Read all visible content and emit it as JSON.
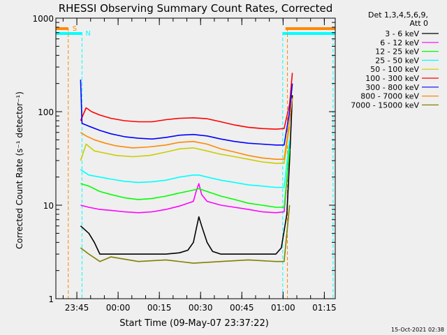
{
  "chart_data": {
    "type": "line",
    "title": "RHESSI Observing Summary Count Rates, Corrected",
    "ylabel": "Corrected Count Rate (s⁻¹ detector⁻¹)",
    "xlabel": "Start Time (09-May-07 23:37:22)",
    "yscale": "log",
    "ylim": [
      1,
      1000
    ],
    "xlim_minutes_from_start": [
      0,
      101.6
    ],
    "y_tick_labels": [
      {
        "value": 1,
        "label": "1"
      },
      {
        "value": 10,
        "label": "10"
      },
      {
        "value": 100,
        "label": "100"
      },
      {
        "value": 1000,
        "label": "1000"
      }
    ],
    "x_tick_labels": [
      {
        "t": 7.63,
        "label": "23:45"
      },
      {
        "t": 22.63,
        "label": "00:00"
      },
      {
        "t": 37.63,
        "label": "00:15"
      },
      {
        "t": 52.63,
        "label": "00:30"
      },
      {
        "t": 67.63,
        "label": "00:45"
      },
      {
        "t": 82.63,
        "label": "01:00"
      },
      {
        "t": 97.63,
        "label": "01:15"
      }
    ],
    "legend_title": [
      "Det 1,3,4,5,6,9,",
      "Att 0"
    ],
    "legend_position": "right",
    "series": [
      {
        "name": "3 - 6 keV",
        "color": "#000000",
        "points": [
          [
            9,
            6
          ],
          [
            12,
            5
          ],
          [
            14,
            4
          ],
          [
            16,
            3
          ],
          [
            20,
            3
          ],
          [
            30,
            3
          ],
          [
            40,
            3
          ],
          [
            45,
            3.1
          ],
          [
            48,
            3.3
          ],
          [
            50,
            4
          ],
          [
            51,
            5.5
          ],
          [
            52,
            7.5
          ],
          [
            53,
            6
          ],
          [
            55,
            4
          ],
          [
            57,
            3.2
          ],
          [
            60,
            3
          ],
          [
            70,
            3
          ],
          [
            80,
            3
          ],
          [
            82,
            3.5
          ],
          [
            84,
            8
          ],
          [
            85,
            30
          ],
          [
            86,
            150
          ]
        ]
      },
      {
        "name": "6 - 12 keV",
        "color": "#ff00ff",
        "points": [
          [
            9,
            10
          ],
          [
            12,
            9.5
          ],
          [
            16,
            9
          ],
          [
            20,
            8.8
          ],
          [
            25,
            8.5
          ],
          [
            30,
            8.3
          ],
          [
            35,
            8.5
          ],
          [
            40,
            9
          ],
          [
            45,
            9.8
          ],
          [
            50,
            11
          ],
          [
            51,
            14
          ],
          [
            52,
            17
          ],
          [
            53,
            13
          ],
          [
            55,
            11
          ],
          [
            60,
            10
          ],
          [
            65,
            9.5
          ],
          [
            70,
            9
          ],
          [
            75,
            8.5
          ],
          [
            80,
            8.3
          ],
          [
            83,
            8.5
          ],
          [
            85,
            40
          ]
        ]
      },
      {
        "name": "12 - 25 keV",
        "color": "#00ff00",
        "points": [
          [
            9,
            17
          ],
          [
            12,
            16
          ],
          [
            16,
            14
          ],
          [
            20,
            13
          ],
          [
            25,
            12
          ],
          [
            30,
            11.5
          ],
          [
            35,
            11.8
          ],
          [
            40,
            12.5
          ],
          [
            45,
            13.5
          ],
          [
            50,
            14.5
          ],
          [
            52,
            15
          ],
          [
            55,
            14
          ],
          [
            60,
            12.5
          ],
          [
            65,
            11.5
          ],
          [
            70,
            10.5
          ],
          [
            75,
            10
          ],
          [
            80,
            9.5
          ],
          [
            83,
            9.5
          ],
          [
            85,
            40
          ]
        ]
      },
      {
        "name": "25 - 50 keV",
        "color": "#00ffff",
        "points": [
          [
            9,
            24
          ],
          [
            12,
            21
          ],
          [
            16,
            20
          ],
          [
            20,
            19
          ],
          [
            25,
            18
          ],
          [
            30,
            17.5
          ],
          [
            35,
            17.8
          ],
          [
            40,
            18.5
          ],
          [
            45,
            20
          ],
          [
            50,
            21
          ],
          [
            52,
            21
          ],
          [
            55,
            20
          ],
          [
            60,
            18.5
          ],
          [
            65,
            17.5
          ],
          [
            70,
            16.5
          ],
          [
            75,
            16
          ],
          [
            80,
            15.5
          ],
          [
            83,
            15.5
          ],
          [
            85,
            50
          ]
        ]
      },
      {
        "name": "50 - 100 keV",
        "color": "#cccc00",
        "points": [
          [
            9,
            30
          ],
          [
            11,
            45
          ],
          [
            14,
            38
          ],
          [
            18,
            36
          ],
          [
            22,
            34
          ],
          [
            28,
            33
          ],
          [
            34,
            34
          ],
          [
            40,
            37
          ],
          [
            45,
            40
          ],
          [
            50,
            41
          ],
          [
            55,
            38
          ],
          [
            60,
            35
          ],
          [
            65,
            33
          ],
          [
            70,
            31
          ],
          [
            75,
            29
          ],
          [
            80,
            28
          ],
          [
            83,
            28
          ],
          [
            85,
            70
          ]
        ]
      },
      {
        "name": "100 - 300 keV",
        "color": "#ff0000",
        "points": [
          [
            9,
            80
          ],
          [
            11,
            110
          ],
          [
            13,
            100
          ],
          [
            16,
            92
          ],
          [
            20,
            85
          ],
          [
            25,
            80
          ],
          [
            30,
            78
          ],
          [
            35,
            78
          ],
          [
            40,
            82
          ],
          [
            45,
            85
          ],
          [
            50,
            86
          ],
          [
            55,
            84
          ],
          [
            60,
            78
          ],
          [
            65,
            72
          ],
          [
            70,
            68
          ],
          [
            75,
            66
          ],
          [
            80,
            65
          ],
          [
            83,
            66
          ],
          [
            85,
            120
          ],
          [
            86,
            260
          ]
        ]
      },
      {
        "name": "300 - 800 keV",
        "color": "#0000ff",
        "points": [
          [
            9,
            220
          ],
          [
            9.5,
            75
          ],
          [
            12,
            70
          ],
          [
            16,
            63
          ],
          [
            20,
            58
          ],
          [
            25,
            54
          ],
          [
            30,
            52
          ],
          [
            35,
            51
          ],
          [
            40,
            53
          ],
          [
            45,
            56
          ],
          [
            50,
            57
          ],
          [
            55,
            55
          ],
          [
            60,
            51
          ],
          [
            65,
            48
          ],
          [
            70,
            46
          ],
          [
            75,
            45
          ],
          [
            80,
            44
          ],
          [
            83,
            44
          ],
          [
            85,
            100
          ],
          [
            86,
            200
          ]
        ]
      },
      {
        "name": "800 - 7000 keV",
        "color": "#ff8800",
        "points": [
          [
            9,
            60
          ],
          [
            11,
            55
          ],
          [
            14,
            50
          ],
          [
            18,
            46
          ],
          [
            22,
            43
          ],
          [
            28,
            41
          ],
          [
            34,
            42
          ],
          [
            40,
            44
          ],
          [
            45,
            47
          ],
          [
            50,
            48
          ],
          [
            55,
            45
          ],
          [
            60,
            40
          ],
          [
            65,
            37
          ],
          [
            70,
            34
          ],
          [
            75,
            32
          ],
          [
            80,
            31
          ],
          [
            83,
            31
          ],
          [
            85,
            80
          ],
          [
            86,
            140
          ]
        ]
      },
      {
        "name": "7000 - 15000 keV",
        "color": "#808000",
        "points": [
          [
            9,
            3.5
          ],
          [
            12,
            3
          ],
          [
            16,
            2.5
          ],
          [
            20,
            2.8
          ],
          [
            30,
            2.5
          ],
          [
            40,
            2.6
          ],
          [
            50,
            2.4
          ],
          [
            60,
            2.5
          ],
          [
            70,
            2.6
          ],
          [
            80,
            2.5
          ],
          [
            83,
            2.5
          ],
          [
            85,
            10
          ]
        ]
      }
    ],
    "annotations": [
      {
        "text": "S",
        "color": "#ff8800",
        "kind": "SAA interval"
      },
      {
        "text": "N",
        "color": "#00ffff",
        "kind": "Night interval"
      }
    ]
  },
  "footer_timestamp": "15-Oct-2021 02:38",
  "colors": {
    "background": "#efefef",
    "axes": "#000000"
  }
}
